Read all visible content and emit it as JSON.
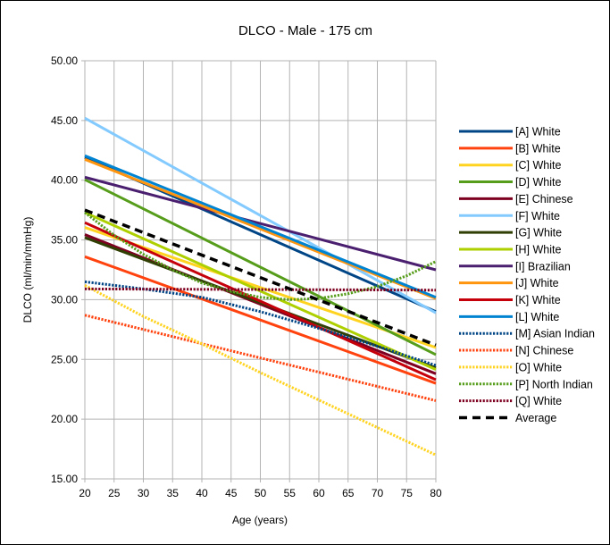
{
  "chart_data": {
    "type": "line",
    "title": "DLCO - Male - 175 cm",
    "xlabel": "Age (years)",
    "ylabel": "DLCO (ml/min/mmHg)",
    "xlim": [
      20,
      80
    ],
    "ylim": [
      15,
      50
    ],
    "xticks": [
      20,
      25,
      30,
      35,
      40,
      45,
      50,
      55,
      60,
      65,
      70,
      75,
      80
    ],
    "yticks": [
      "15.00",
      "20.00",
      "25.00",
      "30.00",
      "35.00",
      "40.00",
      "45.00",
      "50.00"
    ],
    "grid": true,
    "legend_position": "right",
    "series": [
      {
        "name": "[A] White",
        "color": "#004586",
        "style": "solid",
        "x": [
          20,
          80
        ],
        "y": [
          41.9,
          29.0
        ]
      },
      {
        "name": "[B] White",
        "color": "#ff420e",
        "style": "solid",
        "x": [
          20,
          80
        ],
        "y": [
          33.6,
          23.0
        ]
      },
      {
        "name": "[C] White",
        "color": "#ffd320",
        "style": "solid",
        "x": [
          20,
          80
        ],
        "y": [
          36.05,
          26.0
        ]
      },
      {
        "name": "[D] White",
        "color": "#579d1c",
        "style": "solid",
        "x": [
          20,
          80
        ],
        "y": [
          40.05,
          25.4
        ]
      },
      {
        "name": "[E] Chinese",
        "color": "#7e0021",
        "style": "solid",
        "x": [
          20,
          80
        ],
        "y": [
          35.45,
          23.8
        ]
      },
      {
        "name": "[F] White",
        "color": "#83caff",
        "style": "solid",
        "x": [
          20,
          80
        ],
        "y": [
          45.2,
          28.9
        ]
      },
      {
        "name": "[G] White",
        "color": "#314004",
        "style": "solid",
        "x": [
          20,
          80
        ],
        "y": [
          35.2,
          24.3
        ]
      },
      {
        "name": "[H] White",
        "color": "#aecf00",
        "style": "solid",
        "x": [
          20,
          80
        ],
        "y": [
          37.3,
          24.15
        ]
      },
      {
        "name": "[I] Brazilian",
        "color": "#4b1f6f",
        "style": "solid",
        "x": [
          20,
          80
        ],
        "y": [
          40.25,
          32.5
        ]
      },
      {
        "name": "[J] White",
        "color": "#ff950e",
        "style": "solid",
        "x": [
          20,
          80
        ],
        "y": [
          41.75,
          30.1
        ]
      },
      {
        "name": "[K] White",
        "color": "#c5000b",
        "style": "solid",
        "x": [
          20,
          80
        ],
        "y": [
          36.45,
          23.3
        ]
      },
      {
        "name": "[L] White",
        "color": "#0084d1",
        "style": "solid",
        "x": [
          20,
          80
        ],
        "y": [
          42.05,
          30.2
        ]
      },
      {
        "name": "[M] Asian Indian",
        "color": "#004586",
        "style": "dotted",
        "x": [
          20,
          30,
          40,
          50,
          60,
          70,
          80
        ],
        "y": [
          31.5,
          30.9,
          30.2,
          29.0,
          27.6,
          26.1,
          24.5
        ]
      },
      {
        "name": "[N] Chinese",
        "color": "#ff420e",
        "style": "dotted",
        "x": [
          20,
          80
        ],
        "y": [
          28.7,
          21.55
        ]
      },
      {
        "name": "[O] White",
        "color": "#ffd320",
        "style": "dotted",
        "x": [
          20,
          30,
          40,
          50,
          60,
          70,
          80
        ],
        "y": [
          31.2,
          28.6,
          26.3,
          23.9,
          21.6,
          19.3,
          17.0
        ]
      },
      {
        "name": "[P] North Indian",
        "color": "#579d1c",
        "style": "dotted",
        "x": [
          20,
          25,
          30,
          35,
          40,
          45,
          50,
          55,
          60,
          65,
          70,
          75,
          80
        ],
        "y": [
          37.3,
          35.4,
          33.8,
          32.5,
          31.4,
          30.7,
          30.2,
          30.0,
          30.1,
          30.5,
          31.1,
          32.0,
          33.2
        ]
      },
      {
        "name": "[Q] White",
        "color": "#7e0021",
        "style": "dotted",
        "x": [
          20,
          80
        ],
        "y": [
          30.9,
          30.8
        ]
      },
      {
        "name": "Average",
        "color": "#000000",
        "style": "dashed",
        "x": [
          20,
          80
        ],
        "y": [
          37.5,
          26.2
        ]
      }
    ]
  }
}
